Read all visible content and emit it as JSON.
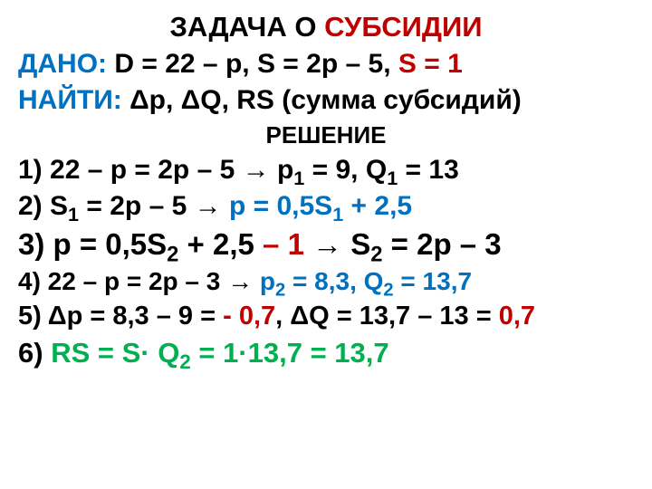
{
  "colors": {
    "black": "#000000",
    "red": "#c00000",
    "blue": "#0070c0",
    "green": "#00b050"
  },
  "title": {
    "p1": "ЗАДАЧА О ",
    "p2": "СУБСИДИИ"
  },
  "given": {
    "label": "ДАНО:   ",
    "a": "D = 22 – p,   S = 2p – 5,",
    "b": "   S = 1"
  },
  "find": {
    "label": "НАЙТИ:   ",
    "text": "Δp, ΔQ, RS (сумма субсидий)"
  },
  "solution_heading": "РЕШЕНИЕ",
  "step1": {
    "a": "1) 22 – p = 2p – 5  → p",
    "sub1": "1",
    "b": " = 9,  Q",
    "sub2": "1",
    "c": " = 13"
  },
  "step2": {
    "a": "2) S",
    "sub1": "1",
    "b": " = 2p – 5 →",
    "c": " p = 0,5S",
    "sub2": "1",
    "d": " + 2,5"
  },
  "step3": {
    "a": "3) p = 0,5S",
    "sub1": "2",
    "b": " + 2,5 ",
    "c": "– 1 ",
    "d": "→ S",
    "sub2": "2",
    "e": " = 2p – 3"
  },
  "step4": {
    "a": "4) 22 – p = 2p – 3 → ",
    "b": "p",
    "sub1": "2",
    "c": " ",
    "d": " = 8,3,  Q",
    "sub2": "2",
    "e": " = 13,7"
  },
  "step5": {
    "a": "5) Δp = 8,3 – 9 = ",
    "b": "- 0,7",
    "c": ",    ΔQ = 13,7 – 13 = ",
    "d": "0,7"
  },
  "step6": {
    "a": "6) ",
    "b": " RS = S· Q",
    "sub1": "2",
    "c": " = 1·13,7 = 13,7"
  }
}
